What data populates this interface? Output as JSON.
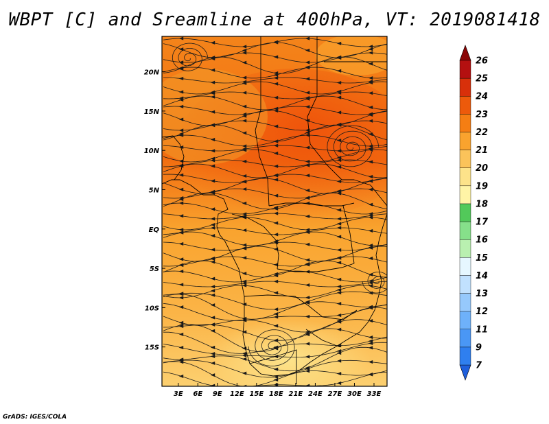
{
  "title": "WBPT [C] and Sreamline at 400hPa, VT: 2019081418",
  "footer": "GrADS: IGES/COLA",
  "map": {
    "lon_labels": [
      "3E",
      "6E",
      "9E",
      "12E",
      "15E",
      "18E",
      "21E",
      "24E",
      "27E",
      "30E",
      "33E"
    ],
    "lon_values": [
      3,
      6,
      9,
      12,
      15,
      18,
      21,
      24,
      27,
      30,
      33
    ],
    "lat_labels": [
      "20N",
      "15N",
      "10N",
      "5N",
      "EQ",
      "5S",
      "10S",
      "15S"
    ],
    "lat_values": [
      20,
      15,
      10,
      5,
      0,
      -5,
      -10,
      -15
    ],
    "lon_range": [
      0.5,
      35
    ],
    "lat_range": [
      -20,
      24.5
    ]
  },
  "colorbar": {
    "labels": [
      "7",
      "9",
      "11",
      "12",
      "13",
      "14",
      "15",
      "16",
      "17",
      "18",
      "19",
      "20",
      "21",
      "22",
      "23",
      "24",
      "25",
      "26"
    ],
    "colors": [
      "#1f5fdc",
      "#2f7fef",
      "#4a97f5",
      "#6eb1fa",
      "#96c9fc",
      "#c1e1fe",
      "#e6f7ff",
      "#b9f0b0",
      "#86e08a",
      "#52c95a",
      "#fff4a6",
      "#fde38a",
      "#fbc35a",
      "#f9a32e",
      "#f57e13",
      "#ed5a0b",
      "#d8300a",
      "#b41010",
      "#8a0505"
    ]
  }
}
